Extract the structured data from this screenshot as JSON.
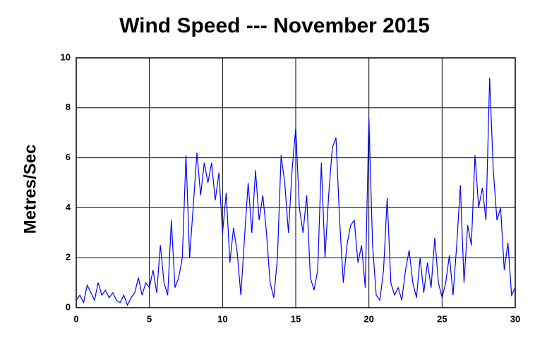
{
  "chart_data": {
    "type": "line",
    "title": "Wind Speed --- November 2015",
    "y_label": "Metres/Sec",
    "x": [
      0,
      0.25,
      0.5,
      0.75,
      1,
      1.25,
      1.5,
      1.75,
      2,
      2.25,
      2.5,
      2.75,
      3,
      3.25,
      3.5,
      3.75,
      4,
      4.25,
      4.5,
      4.75,
      5,
      5.25,
      5.5,
      5.75,
      6,
      6.25,
      6.5,
      6.75,
      7,
      7.25,
      7.5,
      7.75,
      8,
      8.25,
      8.5,
      8.75,
      9,
      9.25,
      9.5,
      9.75,
      10,
      10.25,
      10.5,
      10.75,
      11,
      11.25,
      11.5,
      11.75,
      12,
      12.25,
      12.5,
      12.75,
      13,
      13.25,
      13.5,
      13.75,
      14,
      14.25,
      14.5,
      14.75,
      15,
      15.25,
      15.5,
      15.75,
      16,
      16.25,
      16.5,
      16.75,
      17,
      17.25,
      17.5,
      17.75,
      18,
      18.25,
      18.5,
      18.75,
      19,
      19.25,
      19.5,
      19.75,
      20,
      20.25,
      20.5,
      20.75,
      21,
      21.25,
      21.5,
      21.75,
      22,
      22.25,
      22.5,
      22.75,
      23,
      23.25,
      23.5,
      23.75,
      24,
      24.25,
      24.5,
      24.75,
      25,
      25.25,
      25.5,
      25.75,
      26,
      26.25,
      26.5,
      26.75,
      27,
      27.25,
      27.5,
      27.75,
      28,
      28.25,
      28.5,
      28.75,
      29,
      29.25,
      29.5,
      29.75,
      30
    ],
    "series": [
      {
        "color": "#0000ff",
        "values": [
          0.3,
          0.5,
          0.2,
          0.9,
          0.6,
          0.3,
          1.0,
          0.5,
          0.7,
          0.4,
          0.6,
          0.3,
          0.2,
          0.5,
          0.1,
          0.4,
          0.6,
          1.2,
          0.5,
          1.0,
          0.8,
          1.5,
          0.6,
          2.5,
          1.0,
          0.5,
          3.5,
          0.8,
          1.2,
          2.0,
          6.1,
          2.0,
          4.1,
          6.2,
          4.5,
          5.8,
          5.0,
          5.8,
          4.3,
          5.4,
          3.0,
          4.6,
          1.8,
          3.2,
          2.2,
          0.5,
          2.8,
          5.0,
          3.0,
          5.5,
          3.5,
          4.5,
          3.0,
          1.0,
          0.4,
          2.0,
          6.1,
          5.0,
          3.0,
          5.5,
          7.2,
          4.0,
          3.0,
          4.5,
          1.2,
          0.7,
          1.5,
          5.8,
          2.0,
          4.5,
          6.4,
          6.8,
          3.5,
          1.0,
          2.5,
          3.3,
          3.5,
          1.8,
          2.5,
          0.8,
          7.6,
          2.5,
          0.5,
          0.3,
          1.5,
          4.4,
          1.0,
          0.5,
          0.8,
          0.3,
          1.5,
          2.3,
          1.0,
          0.4,
          2.0,
          0.6,
          1.8,
          0.8,
          2.8,
          1.0,
          0.4,
          1.0,
          2.1,
          0.5,
          2.5,
          4.9,
          1.0,
          3.3,
          2.5,
          6.1,
          4.0,
          4.8,
          3.5,
          9.2,
          5.5,
          3.5,
          4.0,
          1.5,
          2.6,
          0.5,
          0.8
        ]
      }
    ],
    "xlim": [
      0,
      30
    ],
    "xticks": [
      0,
      5,
      10,
      15,
      20,
      25,
      30
    ],
    "ylim": [
      0,
      10
    ],
    "yticks": [
      0,
      2,
      4,
      6,
      8,
      10
    ],
    "grid": true
  }
}
